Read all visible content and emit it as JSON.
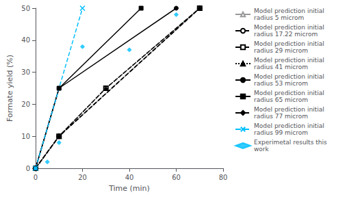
{
  "chart_data": {
    "type": "line",
    "xlabel": "Time (min)",
    "ylabel": "Formate yield (%)",
    "xlim": [
      0,
      80
    ],
    "ylim": [
      0,
      50
    ],
    "xticks": [
      0,
      20,
      40,
      60,
      80
    ],
    "yticks": [
      0,
      10,
      20,
      30,
      40,
      50
    ],
    "grid": false,
    "legend": "right",
    "series": [
      {
        "name": "Model prediction initial\nradius 5 microm",
        "type": "line",
        "x": [
          0,
          10,
          70
        ],
        "values": [
          0,
          10,
          50
        ],
        "color": "#999999",
        "marker": "open-triangle",
        "line_style": "solid"
      },
      {
        "name": "Model prediction initial\nradius 17.22 microm",
        "type": "line",
        "x": [
          0,
          10,
          70
        ],
        "values": [
          0,
          10,
          50
        ],
        "color": "black",
        "marker": "open-circle",
        "line_style": "dashed"
      },
      {
        "name": "Model prediction initial\nradius 29 microm",
        "type": "line",
        "x": [
          0,
          10,
          30,
          70
        ],
        "values": [
          0,
          10,
          25,
          50
        ],
        "color": "black",
        "marker": "open-square",
        "line_style": "dashed"
      },
      {
        "name": "Model prediction initial\nradius 41 microm",
        "type": "line",
        "x": [
          0,
          10,
          30,
          70
        ],
        "values": [
          0,
          10,
          25,
          50
        ],
        "color": "black",
        "marker": "triangle",
        "line_style": "dotted"
      },
      {
        "name": "Model prediction initial\nradius 53 microm",
        "type": "line",
        "x": [
          0,
          10,
          60
        ],
        "values": [
          0,
          25,
          50
        ],
        "color": "black",
        "marker": "circle",
        "line_style": "solid"
      },
      {
        "name": "Model prediction initial\nradius 65 microm",
        "type": "line",
        "x": [
          0,
          10,
          45
        ],
        "values": [
          0,
          25,
          50
        ],
        "color": "black",
        "marker": "square",
        "line_style": "solid"
      },
      {
        "name": "Model prediction initial\nradius 77 microm",
        "type": "line",
        "x": [
          0,
          10,
          70
        ],
        "values": [
          0,
          10,
          50
        ],
        "color": "black",
        "marker": "diamond",
        "line_style": "dashed"
      },
      {
        "name": "Model prediction initial\nradius 99 microm",
        "type": "line",
        "x": [
          0,
          20
        ],
        "values": [
          0,
          50
        ],
        "color": "#00bfff",
        "marker": "x",
        "line_style": "dashed"
      },
      {
        "name": "Experimetal results this\nwork",
        "type": "scatter",
        "x": [
          0,
          5,
          10,
          20,
          40,
          60
        ],
        "values": [
          0,
          2,
          8,
          38,
          37,
          48
        ],
        "color": "#00bfff",
        "marker": "diamond"
      }
    ]
  }
}
